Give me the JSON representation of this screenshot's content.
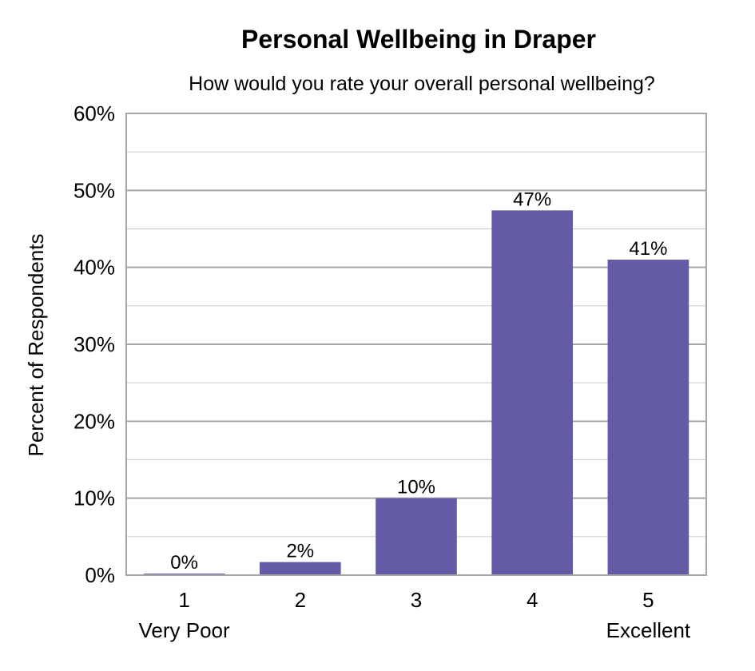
{
  "chart_data": {
    "type": "bar",
    "title": "Personal Wellbeing in Draper",
    "subtitle": "How would you rate your overall personal wellbeing?",
    "xlabel": "",
    "ylabel": "Percent of Respondents",
    "categories": [
      "1",
      "2",
      "3",
      "4",
      "5"
    ],
    "category_sublabels": [
      "Very Poor",
      "",
      "",
      "",
      "Excellent"
    ],
    "values": [
      0.2,
      1.7,
      10,
      47.4,
      41
    ],
    "data_labels": [
      "0%",
      "2%",
      "10%",
      "47%",
      "41%"
    ],
    "ylim": [
      0,
      60
    ],
    "y_ticks": [
      0,
      10,
      20,
      30,
      40,
      50,
      60
    ],
    "y_tick_labels": [
      "0%",
      "10%",
      "20%",
      "30%",
      "40%",
      "50%",
      "60%"
    ],
    "grid": true,
    "legend": "none",
    "bar_color": "#635BA5"
  }
}
